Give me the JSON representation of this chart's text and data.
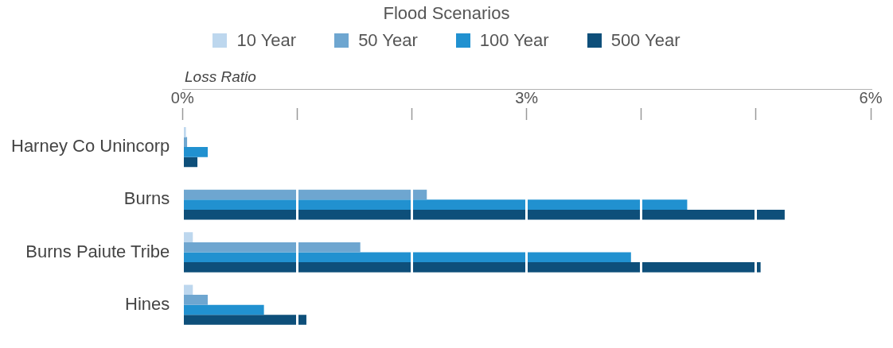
{
  "chart_data": {
    "type": "bar",
    "orientation": "horizontal",
    "legend_title": "Flood Scenarios",
    "xlabel": "Loss Ratio",
    "categories": [
      "Harney Co Unincorp",
      "Burns",
      "Burns Paiute Tribe",
      "Hines"
    ],
    "series": [
      {
        "name": "10 Year",
        "color": "#bdd7ee",
        "values": [
          0.03,
          0,
          0.09,
          0.09
        ]
      },
      {
        "name": "50 Year",
        "color": "#6ea6d0",
        "values": [
          0.04,
          2.13,
          1.55,
          0.22
        ]
      },
      {
        "name": "100 Year",
        "color": "#2191d0",
        "values": [
          0.22,
          4.4,
          3.91,
          0.71
        ]
      },
      {
        "name": "500 Year",
        "color": "#0e4f7a",
        "values": [
          0.13,
          5.25,
          5.04,
          1.08
        ]
      }
    ],
    "xlim": [
      0,
      6
    ],
    "xticks": [
      {
        "value": 0,
        "label": "0%"
      },
      {
        "value": 1,
        "label": null
      },
      {
        "value": 2,
        "label": null
      },
      {
        "value": 3,
        "label": "3%"
      },
      {
        "value": 4,
        "label": null
      },
      {
        "value": 5,
        "label": null
      },
      {
        "value": 6,
        "label": "6%"
      }
    ],
    "grid": "x",
    "legend": "top"
  }
}
